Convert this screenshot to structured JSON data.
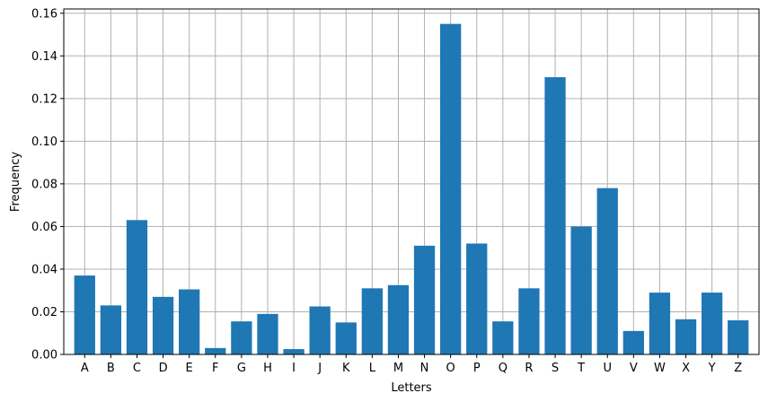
{
  "chart_data": {
    "type": "bar",
    "xlabel": "Letters",
    "ylabel": "Frequency",
    "categories": [
      "A",
      "B",
      "C",
      "D",
      "E",
      "F",
      "G",
      "H",
      "I",
      "J",
      "K",
      "L",
      "M",
      "N",
      "O",
      "P",
      "Q",
      "R",
      "S",
      "T",
      "U",
      "V",
      "W",
      "X",
      "Y",
      "Z"
    ],
    "values": [
      0.037,
      0.023,
      0.063,
      0.027,
      0.0305,
      0.003,
      0.0155,
      0.019,
      0.0025,
      0.0225,
      0.015,
      0.031,
      0.0325,
      0.051,
      0.155,
      0.052,
      0.0155,
      0.031,
      0.13,
      0.06,
      0.078,
      0.011,
      0.029,
      0.0165,
      0.029,
      0.016
    ],
    "ylim": [
      0,
      0.162
    ],
    "yticks": [
      "0.00",
      "0.02",
      "0.04",
      "0.06",
      "0.08",
      "0.10",
      "0.12",
      "0.14",
      "0.16"
    ],
    "grid": true,
    "bar_color": "#1f77b4",
    "grid_color": "#b0b0b0"
  }
}
